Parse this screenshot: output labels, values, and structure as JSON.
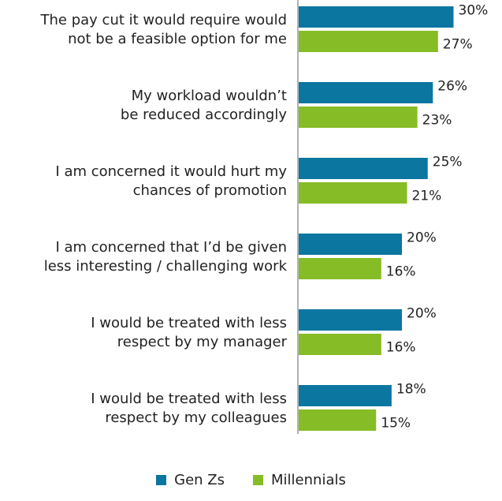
{
  "colors": {
    "gen_z": "#0b76a0",
    "millennials": "#86bc25"
  },
  "chart_data": {
    "type": "bar",
    "orientation": "horizontal",
    "categories": [
      [
        "The pay cut it would require would",
        "not be a feasible option for me"
      ],
      [
        "My workload wouldn’t",
        "be reduced accordingly"
      ],
      [
        "I am concerned it would hurt my",
        "chances of promotion"
      ],
      [
        "I am concerned that I’d be given",
        "less interesting / challenging work"
      ],
      [
        "I would be treated with less",
        "respect by my manager"
      ],
      [
        "I would be treated with less",
        "respect by my colleagues"
      ]
    ],
    "series": [
      {
        "name": "Gen Zs",
        "color": "#0b76a0",
        "values": [
          30,
          26,
          25,
          20,
          20,
          18
        ],
        "labels": [
          "30%",
          "26%",
          "25%",
          "20%",
          "20%",
          "18%"
        ]
      },
      {
        "name": "Millennials",
        "color": "#86bc25",
        "values": [
          27,
          23,
          21,
          16,
          16,
          15
        ],
        "labels": [
          "27%",
          "23%",
          "21%",
          "16%",
          "16%",
          "15%"
        ]
      }
    ],
    "xlim": [
      0,
      40
    ],
    "grid": false,
    "legend": "bottom-center"
  }
}
